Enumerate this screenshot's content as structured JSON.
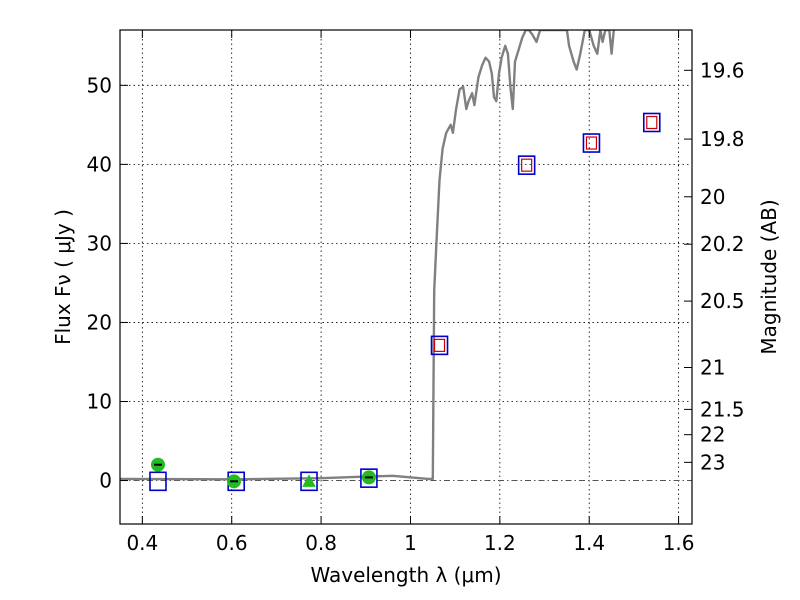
{
  "chart_data": {
    "type": "scatter",
    "title": "",
    "xlabel": "Wavelength  λ (μm)",
    "ylabel": "Flux  Fν  ( μJy )",
    "y2label": "Magnitude (AB)",
    "xlim": [
      0.35,
      1.63
    ],
    "ylim": [
      -5.5,
      57
    ],
    "x_ticks": [
      0.4,
      0.6,
      0.8,
      1.0,
      1.2,
      1.4,
      1.6
    ],
    "x_tick_labels": [
      "0.4",
      "0.6",
      "0.8",
      "1",
      "1.2",
      "1.4",
      "1.6"
    ],
    "y_ticks": [
      0,
      10,
      20,
      30,
      40,
      50
    ],
    "y_tick_labels": [
      "0",
      "10",
      "20",
      "30",
      "40",
      "50"
    ],
    "y2_ticks": [
      {
        "label": "19.6",
        "flux": 51.9
      },
      {
        "label": "19.8",
        "flux": 43.2
      },
      {
        "label": "20",
        "flux": 35.9
      },
      {
        "label": "20.2",
        "flux": 29.9
      },
      {
        "label": "20.5",
        "flux": 22.7
      },
      {
        "label": "21",
        "flux": 14.3
      },
      {
        "label": "21.5",
        "flux": 9.0
      },
      {
        "label": "22",
        "flux": 5.8
      },
      {
        "label": "23",
        "flux": 2.3
      }
    ],
    "grid": true,
    "colors": {
      "model": "#808080",
      "model_box": "#0000cc",
      "obs_box": "#cc0000",
      "detection": "#22bb22",
      "zero_line": "#555555"
    },
    "series": [
      {
        "type": "line",
        "points": [
          [
            0.35,
            0.2
          ],
          [
            0.6,
            0.15
          ],
          [
            0.8,
            0.3
          ],
          [
            0.9,
            0.5
          ],
          [
            0.96,
            0.6
          ],
          [
            1.04,
            0.2
          ],
          [
            1.05,
            0.2
          ],
          [
            1.053,
            24
          ],
          [
            1.058,
            30
          ],
          [
            1.065,
            38
          ],
          [
            1.072,
            42
          ],
          [
            1.08,
            44
          ],
          [
            1.09,
            45
          ],
          [
            1.095,
            44
          ],
          [
            1.102,
            47
          ],
          [
            1.11,
            49.5
          ],
          [
            1.118,
            49.8
          ],
          [
            1.125,
            47
          ],
          [
            1.13,
            48
          ],
          [
            1.138,
            49
          ],
          [
            1.143,
            47.5
          ],
          [
            1.152,
            51
          ],
          [
            1.16,
            52.5
          ],
          [
            1.168,
            53.5
          ],
          [
            1.176,
            53
          ],
          [
            1.182,
            51.5
          ],
          [
            1.187,
            48.5
          ],
          [
            1.192,
            48
          ],
          [
            1.198,
            51.5
          ],
          [
            1.204,
            53.5
          ],
          [
            1.212,
            55
          ],
          [
            1.218,
            54
          ],
          [
            1.224,
            49.5
          ],
          [
            1.229,
            47
          ],
          [
            1.234,
            53
          ],
          [
            1.242,
            54.5
          ],
          [
            1.25,
            56
          ],
          [
            1.258,
            57
          ],
          [
            1.265,
            57
          ],
          [
            1.272,
            56.5
          ],
          [
            1.282,
            55.5
          ],
          [
            1.29,
            57
          ],
          [
            1.35,
            57
          ],
          [
            1.355,
            55
          ],
          [
            1.365,
            53
          ],
          [
            1.372,
            52
          ],
          [
            1.38,
            54
          ],
          [
            1.39,
            57
          ],
          [
            1.4,
            57
          ],
          [
            1.41,
            55
          ],
          [
            1.418,
            54
          ],
          [
            1.425,
            57
          ],
          [
            1.43,
            55.5
          ],
          [
            1.436,
            57
          ],
          [
            1.445,
            57
          ],
          [
            1.45,
            54
          ],
          [
            1.455,
            57
          ]
        ]
      },
      {
        "type": "model_box",
        "points": [
          [
            0.435,
            -0.1
          ],
          [
            0.61,
            -0.1
          ],
          [
            0.773,
            -0.1
          ],
          [
            0.907,
            0.3
          ],
          [
            1.065,
            17.1
          ],
          [
            1.26,
            39.9
          ],
          [
            1.405,
            42.7
          ],
          [
            1.54,
            45.3
          ]
        ]
      },
      {
        "type": "observed_box",
        "points": [
          [
            1.065,
            17.1
          ],
          [
            1.26,
            39.9
          ],
          [
            1.405,
            42.7
          ],
          [
            1.54,
            45.3
          ]
        ]
      },
      {
        "type": "detection_circle",
        "points": [
          [
            0.435,
            2.0
          ],
          [
            0.605,
            -0.1
          ],
          [
            0.907,
            0.4
          ]
        ]
      },
      {
        "type": "detection_triangle",
        "points": [
          [
            0.773,
            -0.1
          ]
        ]
      }
    ]
  }
}
